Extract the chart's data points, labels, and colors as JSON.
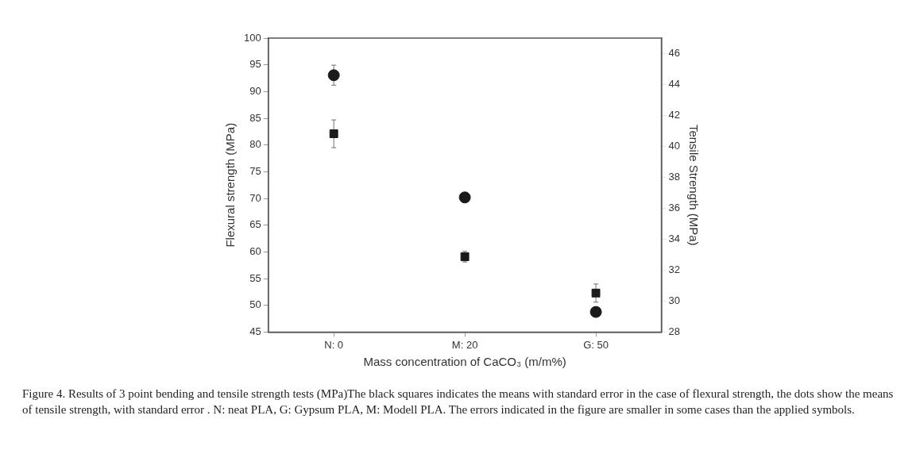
{
  "chart_data": {
    "type": "scatter",
    "categories": [
      "N: 0",
      "M: 20",
      "G: 50"
    ],
    "xlabel": "Mass concentration of CaCO₃ (m/m%)",
    "ylabel": "Flexural strength (MPa)",
    "y2label": "Tensile Strength (MPa)",
    "ylim": [
      45,
      100
    ],
    "yticks": [
      45,
      50,
      55,
      60,
      65,
      70,
      75,
      80,
      85,
      90,
      95,
      100
    ],
    "y2lim": [
      28,
      47
    ],
    "y2ticks": [
      28,
      30,
      32,
      34,
      36,
      38,
      40,
      42,
      44,
      46
    ],
    "grid": false,
    "legend": false,
    "series": [
      {
        "color": "#1a1a1a",
        "marker": "square",
        "values": [
          82.1,
          59.1,
          52.3
        ],
        "errors": [
          2.6,
          1,
          1.7
        ]
      },
      {
        "color": "#1a1a1a",
        "marker": "circle",
        "axis": "y2",
        "values": [
          44.6,
          36.7,
          29.3
        ],
        "errors": [
          0.65,
          0.3,
          0.3
        ]
      }
    ],
    "annotations": [
      "Figure 4. Results of 3 point bending and tensile strength tests (MPa)The black squares indicates the means with standard error in the case of flexural strength, the dots show the means of tensile strength, with standard error . N: neat PLA, G: Gypsum PLA, M: Modell PLA. The errors indicated in the figure are smaller in some cases than the applied symbols."
    ]
  }
}
